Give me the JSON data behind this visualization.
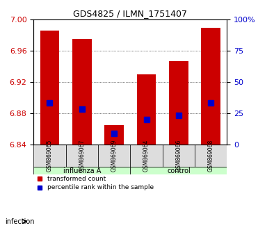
{
  "title": "GDS4825 / ILMN_1751407",
  "samples": [
    "GSM869065",
    "GSM869067",
    "GSM869069",
    "GSM869064",
    "GSM869066",
    "GSM869068"
  ],
  "groups": [
    "influenza A",
    "influenza A",
    "influenza A",
    "control",
    "control",
    "control"
  ],
  "group_labels": [
    "influenza A",
    "control"
  ],
  "group_colors": [
    "#aaffaa",
    "#55ee55"
  ],
  "bar_tops": [
    6.986,
    6.975,
    6.865,
    6.93,
    6.947,
    6.99
  ],
  "bar_bottom": 6.84,
  "blue_values": [
    6.893,
    6.885,
    6.854,
    6.872,
    6.877,
    6.893
  ],
  "ylim_left": [
    6.84,
    7.0
  ],
  "yticks_left": [
    6.84,
    6.88,
    6.92,
    6.96,
    7
  ],
  "ylim_right": [
    0,
    100
  ],
  "yticks_right": [
    0,
    25,
    50,
    75,
    100
  ],
  "yticklabels_right": [
    "0",
    "25",
    "50",
    "75",
    "100%"
  ],
  "bar_color": "#cc0000",
  "blue_color": "#0000cc",
  "bar_width": 0.6,
  "blue_marker_size": 6,
  "grid_color": "black",
  "group_bar_color_light": "#ccffcc",
  "group_bar_color_dark": "#88ee88",
  "infection_label": "infection",
  "legend_items": [
    "transformed count",
    "percentile rank within the sample"
  ],
  "left_ylabel_color": "#cc0000",
  "right_ylabel_color": "#0000cc"
}
